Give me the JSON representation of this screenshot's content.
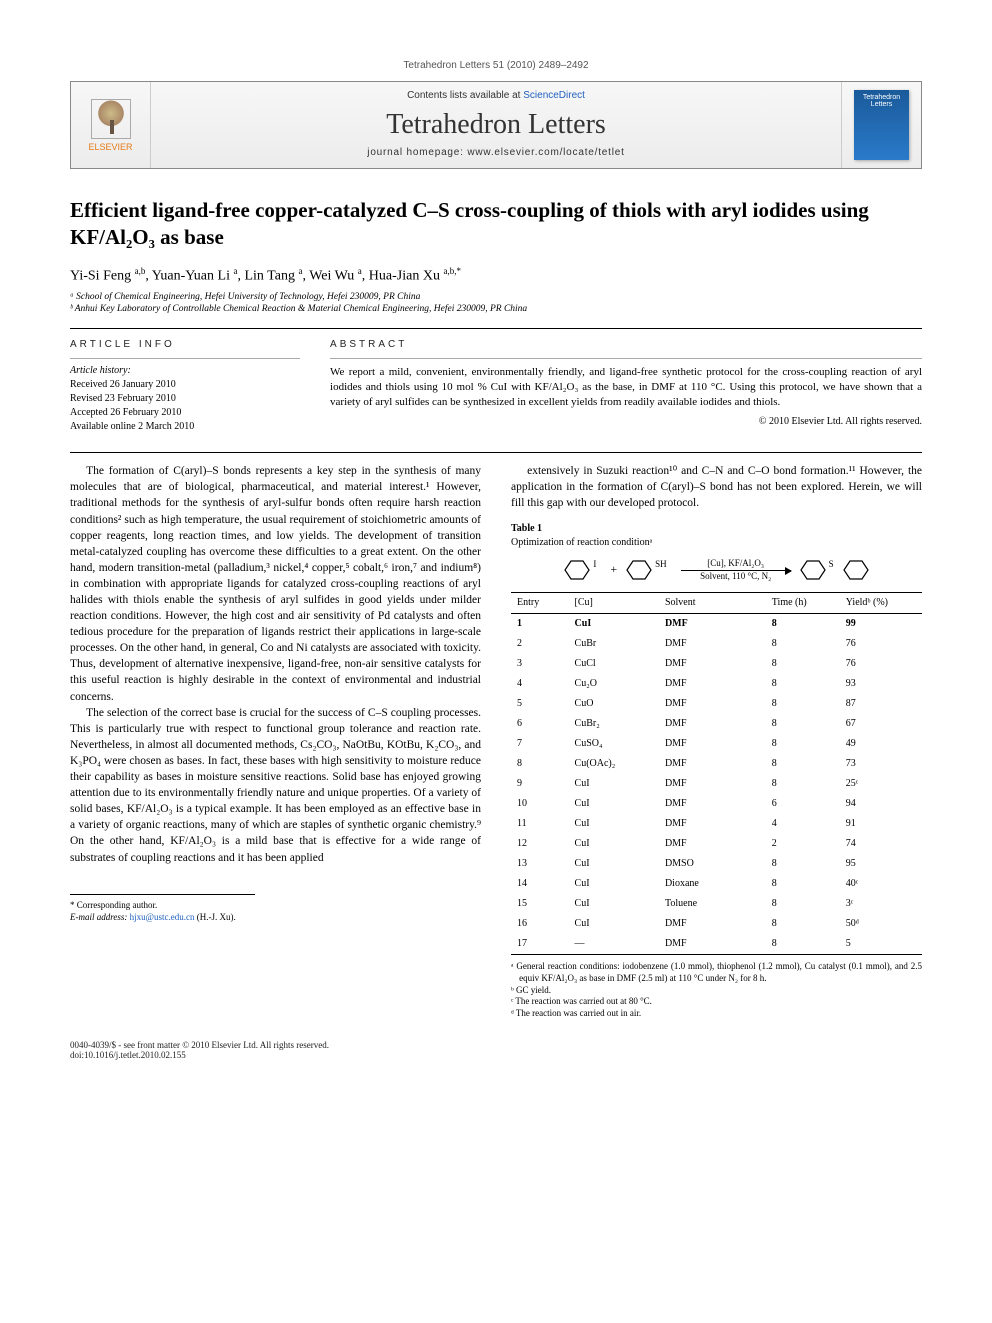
{
  "running_header": "Tetrahedron Letters 51 (2010) 2489–2492",
  "banner": {
    "contents_prefix": "Contents lists available at ",
    "contents_link": "ScienceDirect",
    "journal": "Tetrahedron Letters",
    "homepage_prefix": "journal homepage: ",
    "homepage": "www.elsevier.com/locate/tetlet",
    "publisher_word": "ELSEVIER",
    "cover_label": "Tetrahedron Letters"
  },
  "title": "Efficient ligand-free copper-catalyzed C–S cross-coupling of thiols with aryl iodides using KF/Al₂O₃ as base",
  "authors_html": "Yi-Si Feng <sup>a,b</sup>, Yuan-Yuan Li <sup>a</sup>, Lin Tang <sup>a</sup>, Wei Wu <sup>a</sup>, Hua-Jian Xu <sup>a,b,*</sup>",
  "affiliations": [
    "ᵃ School of Chemical Engineering, Hefei University of Technology, Hefei 230009, PR China",
    "ᵇ Anhui Key Laboratory of Controllable Chemical Reaction & Material Chemical Engineering, Hefei 230009, PR China"
  ],
  "article_info_head": "ARTICLE INFO",
  "abstract_head": "ABSTRACT",
  "history_label": "Article history:",
  "history": [
    "Received 26 January 2010",
    "Revised 23 February 2010",
    "Accepted 26 February 2010",
    "Available online 2 March 2010"
  ],
  "abstract": "We report a mild, convenient, environmentally friendly, and ligand-free synthetic protocol for the cross-coupling reaction of aryl iodides and thiols using 10 mol % CuI with KF/Al₂O₃ as the base, in DMF at 110 °C. Using this protocol, we have shown that a variety of aryl sulfides can be synthesized in excellent yields from readily available iodides and thiols.",
  "copyright": "© 2010 Elsevier Ltd. All rights reserved.",
  "body": {
    "p1": "The formation of C(aryl)–S bonds represents a key step in the synthesis of many molecules that are of biological, pharmaceutical, and material interest.¹ However, traditional methods for the synthesis of aryl-sulfur bonds often require harsh reaction conditions² such as high temperature, the usual requirement of stoichiometric amounts of copper reagents, long reaction times, and low yields. The development of transition metal-catalyzed coupling has overcome these difficulties to a great extent. On the other hand, modern transition-metal (palladium,³ nickel,⁴ copper,⁵ cobalt,⁶ iron,⁷ and indium⁸) in combination with appropriate ligands for catalyzed cross-coupling reactions of aryl halides with thiols enable the synthesis of aryl sulfides in good yields under milder reaction conditions. However, the high cost and air sensitivity of Pd catalysts and often tedious procedure for the preparation of ligands restrict their applications in large-scale processes. On the other hand, in general, Co and Ni catalysts are associated with toxicity. Thus, development of alternative inexpensive, ligand-free, non-air sensitive catalysts for this useful reaction is highly desirable in the context of environmental and industrial concerns.",
    "p2": "The selection of the correct base is crucial for the success of C–S coupling processes. This is particularly true with respect to functional group tolerance and reaction rate. Nevertheless, in almost all documented methods, Cs₂CO₃, NaOtBu, KOtBu, K₂CO₃, and K₃PO₄ were chosen as bases. In fact, these bases with high sensitivity to moisture reduce their capability as bases in moisture sensitive reactions. Solid base has enjoyed growing attention due to its environmentally friendly nature and unique properties. Of a variety of solid bases, KF/Al₂O₃ is a typical example. It has been employed as an effective base in a variety of organic reactions, many of which are staples of synthetic organic chemistry.⁹ On the other hand, KF/Al₂O₃ is a mild base that is effective for a wide range of substrates of coupling reactions and it has been applied",
    "p3": "extensively in Suzuki reaction¹⁰ and C–N and C–O bond formation.¹¹ However, the application in the formation of C(aryl)–S bond has not been explored. Herein, we will fill this gap with our developed protocol."
  },
  "table1": {
    "label": "Table 1",
    "caption": "Optimization of reaction conditionᵃ",
    "scheme": {
      "top": "[Cu], KF/Al₂O₃",
      "bottom": "Solvent, 110 °C, N₂",
      "sub_i": "I",
      "sub_sh": "SH",
      "sub_s": "S",
      "plus": "+"
    },
    "headers": [
      "Entry",
      "[Cu]",
      "Solvent",
      "Time (h)",
      "Yieldᵇ (%)"
    ],
    "rows": [
      {
        "cells": [
          "1",
          "CuI",
          "DMF",
          "8",
          "99"
        ],
        "bold": true
      },
      {
        "cells": [
          "2",
          "CuBr",
          "DMF",
          "8",
          "76"
        ]
      },
      {
        "cells": [
          "3",
          "CuCl",
          "DMF",
          "8",
          "76"
        ]
      },
      {
        "cells": [
          "4",
          "Cu₂O",
          "DMF",
          "8",
          "93"
        ]
      },
      {
        "cells": [
          "5",
          "CuO",
          "DMF",
          "8",
          "87"
        ]
      },
      {
        "cells": [
          "6",
          "CuBr₂",
          "DMF",
          "8",
          "67"
        ]
      },
      {
        "cells": [
          "7",
          "CuSO₄",
          "DMF",
          "8",
          "49"
        ]
      },
      {
        "cells": [
          "8",
          "Cu(OAc)₂",
          "DMF",
          "8",
          "73"
        ]
      },
      {
        "cells": [
          "9",
          "CuI",
          "DMF",
          "8",
          "25ᶜ"
        ]
      },
      {
        "cells": [
          "10",
          "CuI",
          "DMF",
          "6",
          "94"
        ]
      },
      {
        "cells": [
          "11",
          "CuI",
          "DMF",
          "4",
          "91"
        ]
      },
      {
        "cells": [
          "12",
          "CuI",
          "DMF",
          "2",
          "74"
        ]
      },
      {
        "cells": [
          "13",
          "CuI",
          "DMSO",
          "8",
          "95"
        ]
      },
      {
        "cells": [
          "14",
          "CuI",
          "Dioxane",
          "8",
          "40ᶜ"
        ]
      },
      {
        "cells": [
          "15",
          "CuI",
          "Toluene",
          "8",
          "3ᶜ"
        ]
      },
      {
        "cells": [
          "16",
          "CuI",
          "DMF",
          "8",
          "50ᵈ"
        ]
      },
      {
        "cells": [
          "17",
          "—",
          "DMF",
          "8",
          "5"
        ]
      }
    ],
    "footnotes": [
      "ᵃ General reaction conditions: iodobenzene (1.0 mmol), thiophenol (1.2 mmol), Cu catalyst (0.1 mmol), and 2.5 equiv KF/Al₂O₃ as base in DMF (2.5 ml) at 110 °C under N₂ for 8 h.",
      "ᵇ GC yield.",
      "ᶜ The reaction was carried out at 80 °C.",
      "ᵈ The reaction was carried out in air."
    ],
    "col_widths": [
      "14%",
      "22%",
      "26%",
      "18%",
      "20%"
    ]
  },
  "corresponding": {
    "star": "* Corresponding author.",
    "email_label": "E-mail address: ",
    "email": "hjxu@ustc.edu.cn",
    "email_suffix": " (H.-J. Xu)."
  },
  "footer": {
    "line1": "0040-4039/$ - see front matter © 2010 Elsevier Ltd. All rights reserved.",
    "line2": "doi:10.1016/j.tetlet.2010.02.155"
  },
  "colors": {
    "link": "#2060c0",
    "text": "#000000",
    "banner_bg_top": "#f7f7f7",
    "banner_bg_bot": "#ececec",
    "elsevier_orange": "#e67a17",
    "cover_blue": "#2a7aca"
  }
}
